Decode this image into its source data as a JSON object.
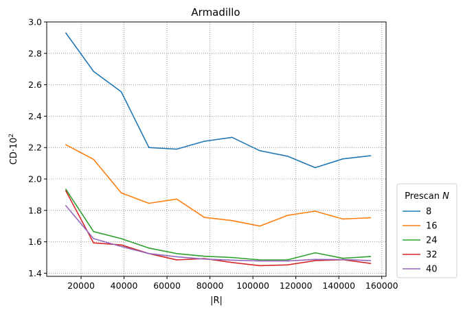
{
  "chart_data": {
    "type": "line",
    "title": "Armadillo",
    "xlabel": "|R|",
    "ylabel": "CD·10",
    "ylabel_superscript": "2",
    "xlim": [
      4000,
      162000
    ],
    "ylim": [
      1.38,
      3.0
    ],
    "xticks": [
      20000,
      40000,
      60000,
      80000,
      100000,
      120000,
      140000,
      160000
    ],
    "xtick_labels": [
      "20000",
      "40000",
      "60000",
      "80000",
      "100000",
      "120000",
      "140000",
      "160000"
    ],
    "yticks": [
      1.4,
      1.6,
      1.8,
      2.0,
      2.2,
      2.4,
      2.6,
      2.8,
      3.0
    ],
    "ytick_labels": [
      "1.4",
      "1.6",
      "1.8",
      "2.0",
      "2.2",
      "2.4",
      "2.6",
      "2.8",
      "3.0"
    ],
    "grid": true,
    "legend": {
      "title": "Prescan",
      "title_italic": "N",
      "placement": "outside-right-bottom"
    },
    "x": [
      12900,
      25800,
      38700,
      51600,
      64500,
      77400,
      90300,
      103200,
      116100,
      129000,
      141900,
      154800
    ],
    "series": [
      {
        "name": "8",
        "color": "#1f77b4",
        "values": [
          2.93,
          2.685,
          2.555,
          2.2,
          2.19,
          2.24,
          2.265,
          2.18,
          2.145,
          2.072,
          2.128,
          2.148
        ]
      },
      {
        "name": "16",
        "color": "#ff7f0e",
        "values": [
          2.218,
          2.125,
          1.912,
          1.845,
          1.872,
          1.755,
          1.735,
          1.7,
          1.768,
          1.795,
          1.745,
          1.753
        ]
      },
      {
        "name": "24",
        "color": "#2ca02c",
        "values": [
          1.935,
          1.665,
          1.62,
          1.56,
          1.525,
          1.508,
          1.5,
          1.485,
          1.485,
          1.53,
          1.495,
          1.506
        ]
      },
      {
        "name": "32",
        "color": "#d62728",
        "values": [
          1.925,
          1.593,
          1.58,
          1.525,
          1.485,
          1.493,
          1.468,
          1.448,
          1.453,
          1.48,
          1.486,
          1.462
        ]
      },
      {
        "name": "40",
        "color": "#9467bd",
        "values": [
          1.83,
          1.62,
          1.57,
          1.525,
          1.505,
          1.49,
          1.483,
          1.478,
          1.478,
          1.488,
          1.487,
          1.48
        ]
      }
    ]
  }
}
